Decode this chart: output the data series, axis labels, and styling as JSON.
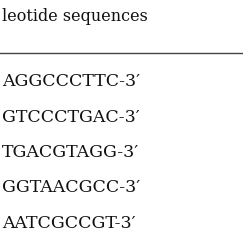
{
  "header": "leotide sequences",
  "sequences": [
    "AGGCCCTTC-3′",
    "GTCCCTGAC-3′",
    "TGACGTAGG-3′",
    "GGTAACGCC-3′",
    "AATCGCCGT-3′"
  ],
  "background_color": "#ffffff",
  "text_color": "#111111",
  "header_fontsize": 11.5,
  "seq_fontsize": 12.5,
  "line_color": "#444444",
  "line_lw": 1.0
}
